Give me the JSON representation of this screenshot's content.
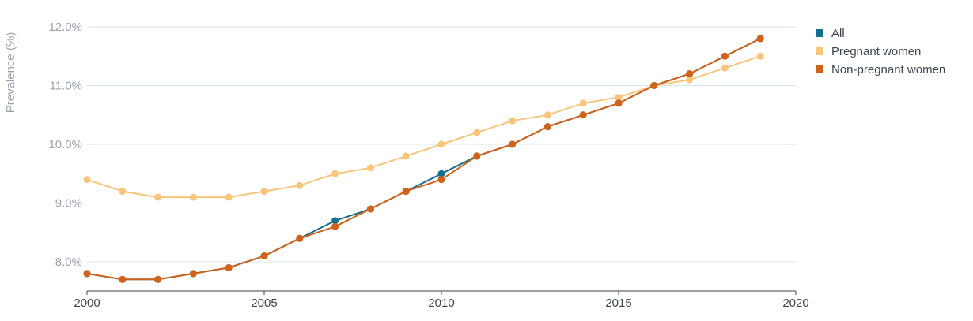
{
  "chart_data": {
    "type": "line",
    "title": "",
    "xlabel": "",
    "ylabel": "Prevalence (%)",
    "xlim": [
      2000,
      2020
    ],
    "ylim": [
      7.5,
      12.0
    ],
    "x_ticks": [
      "2000",
      "2005",
      "2010",
      "2015",
      "2020"
    ],
    "y_ticks": [
      "8.0%",
      "9.0%",
      "10.0%",
      "11.0%",
      "12.0%"
    ],
    "grid": "horizontal",
    "legend_position": "right",
    "x": [
      2000,
      2001,
      2002,
      2003,
      2004,
      2005,
      2006,
      2007,
      2008,
      2009,
      2010,
      2011,
      2012,
      2013,
      2014,
      2015,
      2016,
      2017,
      2018,
      2019
    ],
    "series": [
      {
        "name": "All",
        "color": "#14708c",
        "values": [
          7.8,
          7.7,
          7.7,
          7.8,
          7.9,
          8.1,
          8.4,
          8.7,
          8.9,
          9.2,
          9.5,
          9.8,
          10.0,
          10.3,
          10.5,
          10.7,
          11.0,
          11.2,
          11.5,
          11.8
        ]
      },
      {
        "name": "Pregnant women",
        "color": "#f9c57a",
        "values": [
          9.4,
          9.2,
          9.1,
          9.1,
          9.1,
          9.2,
          9.3,
          9.5,
          9.6,
          9.8,
          10.0,
          10.2,
          10.4,
          10.5,
          10.7,
          10.8,
          11.0,
          11.1,
          11.3,
          11.5
        ]
      },
      {
        "name": "Non-pregnant women",
        "color": "#d2611a",
        "values": [
          7.8,
          7.7,
          7.7,
          7.8,
          7.9,
          8.1,
          8.4,
          8.6,
          8.9,
          9.2,
          9.4,
          9.8,
          10.0,
          10.3,
          10.5,
          10.7,
          11.0,
          11.2,
          11.5,
          11.8
        ]
      }
    ]
  },
  "colors": {
    "grid": "#d6e6e8",
    "axis": "#3b4650"
  }
}
